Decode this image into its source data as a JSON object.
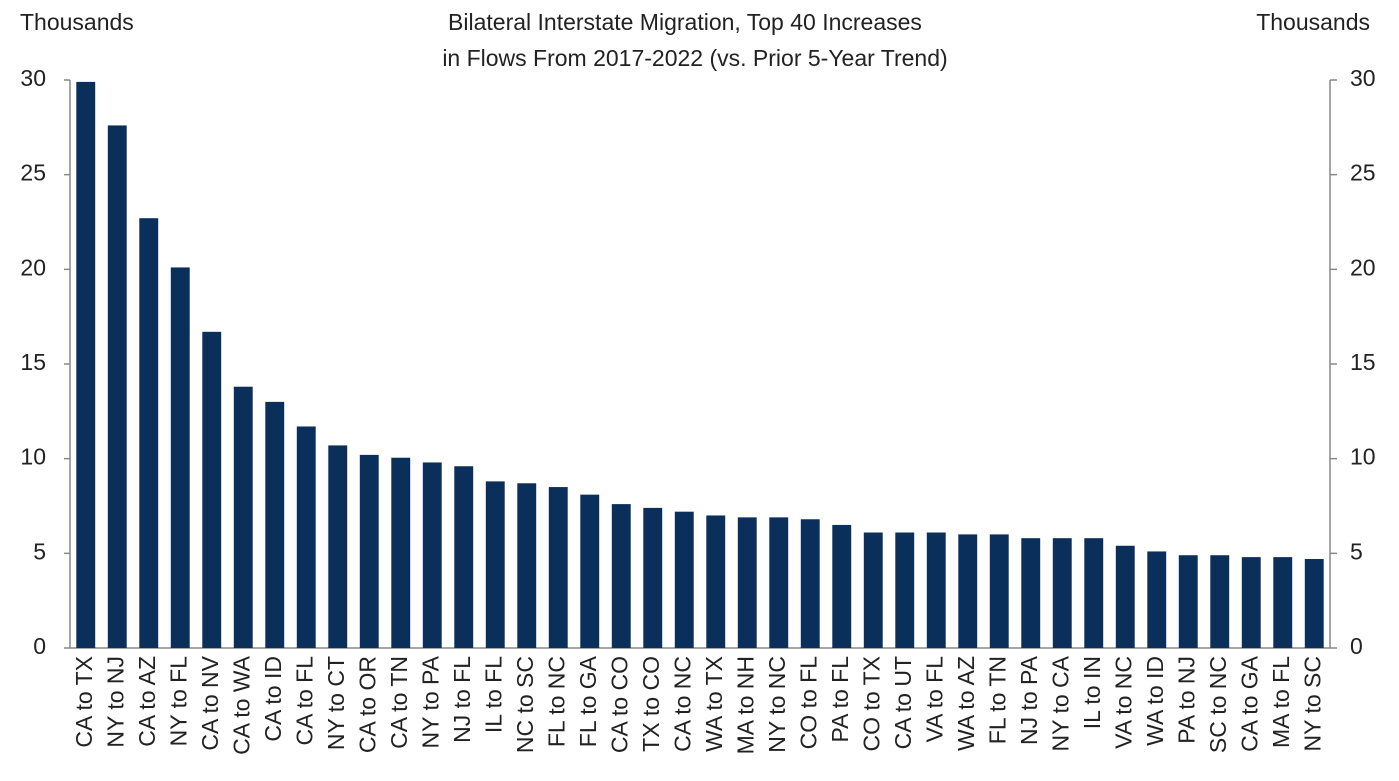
{
  "chart_data": {
    "type": "bar",
    "title": [
      "Bilateral Interstate Migration, Top 40 Increases",
      "in Flows From 2017-2022  (vs. Prior 5-Year Trend)"
    ],
    "y_label": "Thousands",
    "y2_label": "Thousands",
    "categories": [
      "CA to TX",
      "NY to NJ",
      "CA to AZ",
      "NY to FL",
      "CA to NV",
      "CA to WA",
      "CA to ID",
      "CA to FL",
      "NY to CT",
      "CA to OR",
      "CA to TN",
      "NY to PA",
      "NJ to FL",
      "IL to FL",
      "NC to SC",
      "FL to NC",
      "FL to GA",
      "CA to CO",
      "TX to CO",
      "CA to NC",
      "WA to TX",
      "MA to NH",
      "NY to NC",
      "CO to FL",
      "PA to FL",
      "CO to TX",
      "CA to UT",
      "VA to FL",
      "WA to AZ",
      "FL to TN",
      "NJ to PA",
      "NY to CA",
      "IL to IN",
      "VA to NC",
      "WA to ID",
      "PA to NJ",
      "SC to NC",
      "CA to GA",
      "MA to FL",
      "NY to SC"
    ],
    "values": [
      29.9,
      27.6,
      22.7,
      20.1,
      16.7,
      13.8,
      13.0,
      11.7,
      10.7,
      10.2,
      10.05,
      9.8,
      9.6,
      8.8,
      8.7,
      8.5,
      8.1,
      7.6,
      7.4,
      7.2,
      7.0,
      6.9,
      6.9,
      6.8,
      6.5,
      6.1,
      6.1,
      6.1,
      6.0,
      6.0,
      5.8,
      5.8,
      5.8,
      5.4,
      5.1,
      4.9,
      4.9,
      4.8,
      4.8,
      4.7
    ],
    "color": "#0b2f5b",
    "ylim": [
      0,
      30
    ],
    "yticks": [
      0,
      5,
      10,
      15,
      20,
      25,
      30
    ],
    "y2lim": [
      0,
      30
    ],
    "y2ticks": [
      0,
      5,
      10,
      15,
      20,
      25,
      30
    ],
    "grid": false
  }
}
